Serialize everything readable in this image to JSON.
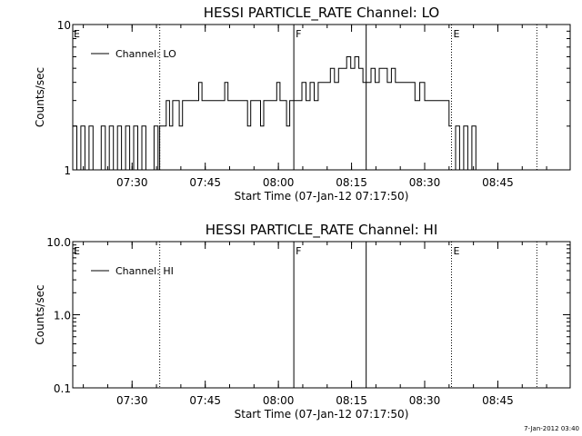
{
  "footer_timestamp": "7-Jan-2012 03:40",
  "chart_data": [
    {
      "type": "line",
      "title": "HESSI PARTICLE_RATE Channel: LO",
      "ylabel": "Counts/sec",
      "xlabel": "Start Time (07-Jan-12 07:17:50)",
      "yscale": "log",
      "ylim": [
        1,
        10
      ],
      "ytick_values": [
        1,
        10
      ],
      "ytick_labels": [
        "1",
        "10"
      ],
      "xlim": [
        "07:17:50",
        "08:59:50"
      ],
      "xtick_values": [
        "07:30",
        "07:45",
        "08:00",
        "08:15",
        "08:30",
        "08:45"
      ],
      "xtick_labels": [
        "07:30",
        "07:45",
        "08:00",
        "08:15",
        "08:30",
        "08:45"
      ],
      "legend": {
        "placement": "top-left",
        "entries": [
          "Channel: LO"
        ]
      },
      "grid": false,
      "vlines": [
        {
          "time": "07:35:40",
          "style": "dotted",
          "label": ""
        },
        {
          "time": "08:03:10",
          "style": "solid",
          "label": "F"
        },
        {
          "time": "08:18:00",
          "style": "solid",
          "label": ""
        },
        {
          "time": "08:35:30",
          "style": "dotted",
          "label": "E"
        },
        {
          "time": "08:53:00",
          "style": "dotted",
          "label": ""
        }
      ],
      "start_label": "E",
      "series": [
        {
          "name": "Channel: LO",
          "segments": [
            {
              "t": [
                "07:17:50",
                "07:18:40",
                "07:19:30",
                "07:20:20",
                "07:21:10",
                "07:22:00",
                "07:22:50",
                "07:23:40",
                "07:24:30",
                "07:25:20",
                "07:26:10",
                "07:27:00",
                "07:27:50",
                "07:28:40",
                "07:29:30",
                "07:30:20",
                "07:31:10",
                "07:32:00",
                "07:32:50",
                "07:33:40",
                "07:34:30",
                "07:35:20",
                "07:35:40"
              ],
              "y": [
                2,
                1,
                2,
                1,
                2,
                1,
                1,
                2,
                1,
                2,
                1,
                2,
                1,
                2,
                1,
                2,
                1,
                2,
                1,
                1,
                2,
                1,
                2
              ]
            },
            {
              "t": [
                "07:35:40",
                "07:36:20",
                "07:37:00",
                "07:37:40",
                "07:38:20",
                "07:39:00",
                "07:39:40",
                "07:40:20",
                "07:41:00",
                "07:41:40",
                "07:42:20",
                "07:43:00",
                "07:43:40",
                "07:44:20",
                "07:45:00",
                "07:45:40",
                "07:46:20",
                "07:47:00",
                "07:47:40",
                "07:48:20",
                "07:49:00",
                "07:49:40",
                "07:50:20",
                "07:51:00",
                "07:51:40",
                "07:52:20",
                "07:53:00",
                "07:53:40",
                "07:54:20",
                "07:55:00",
                "07:55:40",
                "07:56:20",
                "07:57:00",
                "07:57:40",
                "07:58:20",
                "07:59:00",
                "07:59:40",
                "08:00:20",
                "08:01:00",
                "08:01:40",
                "08:02:20",
                "08:03:10"
              ],
              "y": [
                2,
                2,
                3,
                2,
                3,
                3,
                2,
                3,
                3,
                3,
                3,
                3,
                4,
                3,
                3,
                3,
                3,
                3,
                3,
                3,
                4,
                3,
                3,
                3,
                3,
                3,
                3,
                2,
                3,
                3,
                3,
                2,
                3,
                3,
                3,
                3,
                4,
                3,
                3,
                2,
                3,
                3
              ]
            },
            {
              "t": [
                "08:03:10",
                "08:04:00",
                "08:04:50",
                "08:05:40",
                "08:06:30",
                "08:07:20",
                "08:08:10",
                "08:09:00",
                "08:09:50",
                "08:10:40",
                "08:11:30",
                "08:12:20",
                "08:13:10",
                "08:14:00",
                "08:14:50",
                "08:15:40",
                "08:16:30",
                "08:17:20",
                "08:18:10",
                "08:19:00",
                "08:19:50",
                "08:20:40",
                "08:21:30",
                "08:22:20",
                "08:23:10",
                "08:24:00",
                "08:25:00",
                "08:26:00",
                "08:27:00",
                "08:28:00",
                "08:29:00",
                "08:30:00",
                "08:31:00",
                "08:32:00",
                "08:33:00",
                "08:34:00",
                "08:35:00",
                "08:35:30"
              ],
              "y": [
                3,
                3,
                4,
                3,
                4,
                3,
                4,
                4,
                4,
                5,
                4,
                5,
                5,
                6,
                5,
                6,
                5,
                4,
                4,
                5,
                4,
                5,
                5,
                4,
                5,
                4,
                4,
                4,
                4,
                3,
                4,
                3,
                3,
                3,
                3,
                3,
                2,
                2
              ]
            },
            {
              "t": [
                "08:35:30",
                "08:36:20",
                "08:37:10",
                "08:38:00",
                "08:38:50",
                "08:39:40",
                "08:40:30"
              ],
              "y": [
                1,
                2,
                1,
                2,
                1,
                2,
                1
              ]
            }
          ]
        }
      ]
    },
    {
      "type": "line",
      "title": "HESSI PARTICLE_RATE Channel: HI",
      "ylabel": "Counts/sec",
      "xlabel": "Start Time (07-Jan-12 07:17:50)",
      "yscale": "log",
      "ylim": [
        0.1,
        10
      ],
      "ytick_values": [
        0.1,
        1,
        10
      ],
      "ytick_labels": [
        "0.1",
        "1.0",
        "10.0"
      ],
      "xlim": [
        "07:17:50",
        "08:59:50"
      ],
      "xtick_values": [
        "07:30",
        "07:45",
        "08:00",
        "08:15",
        "08:30",
        "08:45"
      ],
      "xtick_labels": [
        "07:30",
        "07:45",
        "08:00",
        "08:15",
        "08:30",
        "08:45"
      ],
      "legend": {
        "placement": "top-left",
        "entries": [
          "Channel: HI"
        ]
      },
      "grid": false,
      "vlines": [
        {
          "time": "07:35:40",
          "style": "dotted",
          "label": ""
        },
        {
          "time": "08:03:10",
          "style": "solid",
          "label": "F"
        },
        {
          "time": "08:18:00",
          "style": "solid",
          "label": ""
        },
        {
          "time": "08:35:30",
          "style": "dotted",
          "label": "E"
        },
        {
          "time": "08:53:00",
          "style": "dotted",
          "label": ""
        }
      ],
      "start_label": "E",
      "series": [
        {
          "name": "Channel: HI",
          "segments": []
        }
      ]
    }
  ]
}
